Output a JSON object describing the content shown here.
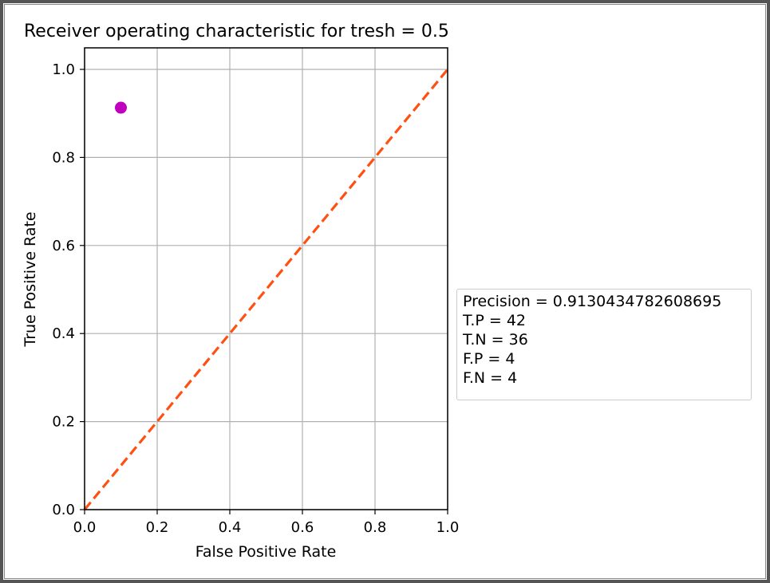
{
  "chart_data": {
    "type": "scatter",
    "title": "Receiver operating characteristic for tresh = 0.5",
    "xlabel": "False Positive Rate",
    "ylabel": "True Positive Rate",
    "xlim": [
      0.0,
      1.0
    ],
    "ylim": [
      0.0,
      1.0
    ],
    "xticks": [
      "0.0",
      "0.2",
      "0.4",
      "0.6",
      "0.8",
      "1.0"
    ],
    "yticks": [
      "0.0",
      "0.2",
      "0.4",
      "0.6",
      "0.8",
      "1.0"
    ],
    "grid": true,
    "series": [
      {
        "type": "scatter",
        "x": [
          0.1
        ],
        "y": [
          0.913
        ],
        "color": "#bf00bf"
      },
      {
        "type": "line",
        "style": "dashed",
        "x": [
          0.0,
          1.0
        ],
        "y": [
          0.0,
          1.0
        ],
        "color": "#ff5011"
      }
    ],
    "legend_placement": "right",
    "legend_lines": [
      "Precision = 0.9130434782608695",
      "T.P = 42",
      "T.N = 36",
      "F.P = 4",
      "F.N = 4"
    ]
  }
}
